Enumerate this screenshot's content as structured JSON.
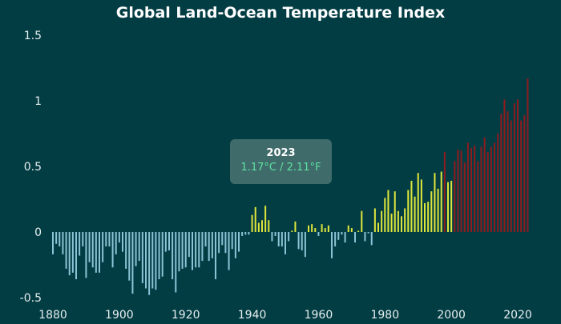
{
  "chart_data": {
    "type": "bar",
    "title": "Global Land-Ocean Temperature Index",
    "xlabel": "",
    "ylabel": "",
    "ylim": [
      -0.5,
      1.5
    ],
    "yticks": [
      "-0.5",
      "0",
      "0.5",
      "1",
      "1.5"
    ],
    "xticks": [
      "1880",
      "1900",
      "1920",
      "1940",
      "1960",
      "1980",
      "2000",
      "2020"
    ],
    "grid": false,
    "colors": {
      "negative": "#8cc3d6",
      "positive_low": "#dfe63a",
      "positive_high": "#8e1b1e"
    },
    "x_start": 1880,
    "values": [
      -0.17,
      -0.09,
      -0.11,
      -0.17,
      -0.28,
      -0.33,
      -0.31,
      -0.36,
      -0.18,
      -0.11,
      -0.35,
      -0.23,
      -0.27,
      -0.31,
      -0.31,
      -0.23,
      -0.11,
      -0.11,
      -0.27,
      -0.17,
      -0.08,
      -0.15,
      -0.28,
      -0.37,
      -0.47,
      -0.26,
      -0.22,
      -0.39,
      -0.43,
      -0.48,
      -0.43,
      -0.44,
      -0.36,
      -0.34,
      -0.15,
      -0.14,
      -0.36,
      -0.46,
      -0.3,
      -0.28,
      -0.27,
      -0.19,
      -0.29,
      -0.27,
      -0.27,
      -0.22,
      -0.11,
      -0.22,
      -0.2,
      -0.36,
      -0.16,
      -0.1,
      -0.16,
      -0.29,
      -0.13,
      -0.2,
      -0.15,
      -0.03,
      -0.02,
      -0.02,
      0.13,
      0.19,
      0.07,
      0.09,
      0.2,
      0.09,
      -0.07,
      -0.03,
      -0.11,
      -0.11,
      -0.17,
      -0.07,
      0.01,
      0.08,
      -0.13,
      -0.14,
      -0.19,
      0.05,
      0.06,
      0.03,
      -0.03,
      0.06,
      0.03,
      0.05,
      -0.2,
      -0.11,
      -0.06,
      -0.02,
      -0.08,
      0.05,
      0.03,
      -0.08,
      0.01,
      0.16,
      -0.07,
      -0.01,
      -0.1,
      0.18,
      0.07,
      0.16,
      0.26,
      0.32,
      0.14,
      0.31,
      0.16,
      0.12,
      0.18,
      0.32,
      0.39,
      0.27,
      0.45,
      0.4,
      0.22,
      0.23,
      0.31,
      0.45,
      0.33,
      0.46,
      0.61,
      0.38,
      0.39,
      0.54,
      0.63,
      0.62,
      0.53,
      0.68,
      0.64,
      0.66,
      0.54,
      0.65,
      0.72,
      0.61,
      0.65,
      0.68,
      0.75,
      0.9,
      1.01,
      0.92,
      0.85,
      0.98,
      1.01,
      0.85,
      0.89,
      1.17
    ],
    "tooltip": {
      "year": "2023",
      "value": "1.17°C / 2.11°F"
    }
  }
}
